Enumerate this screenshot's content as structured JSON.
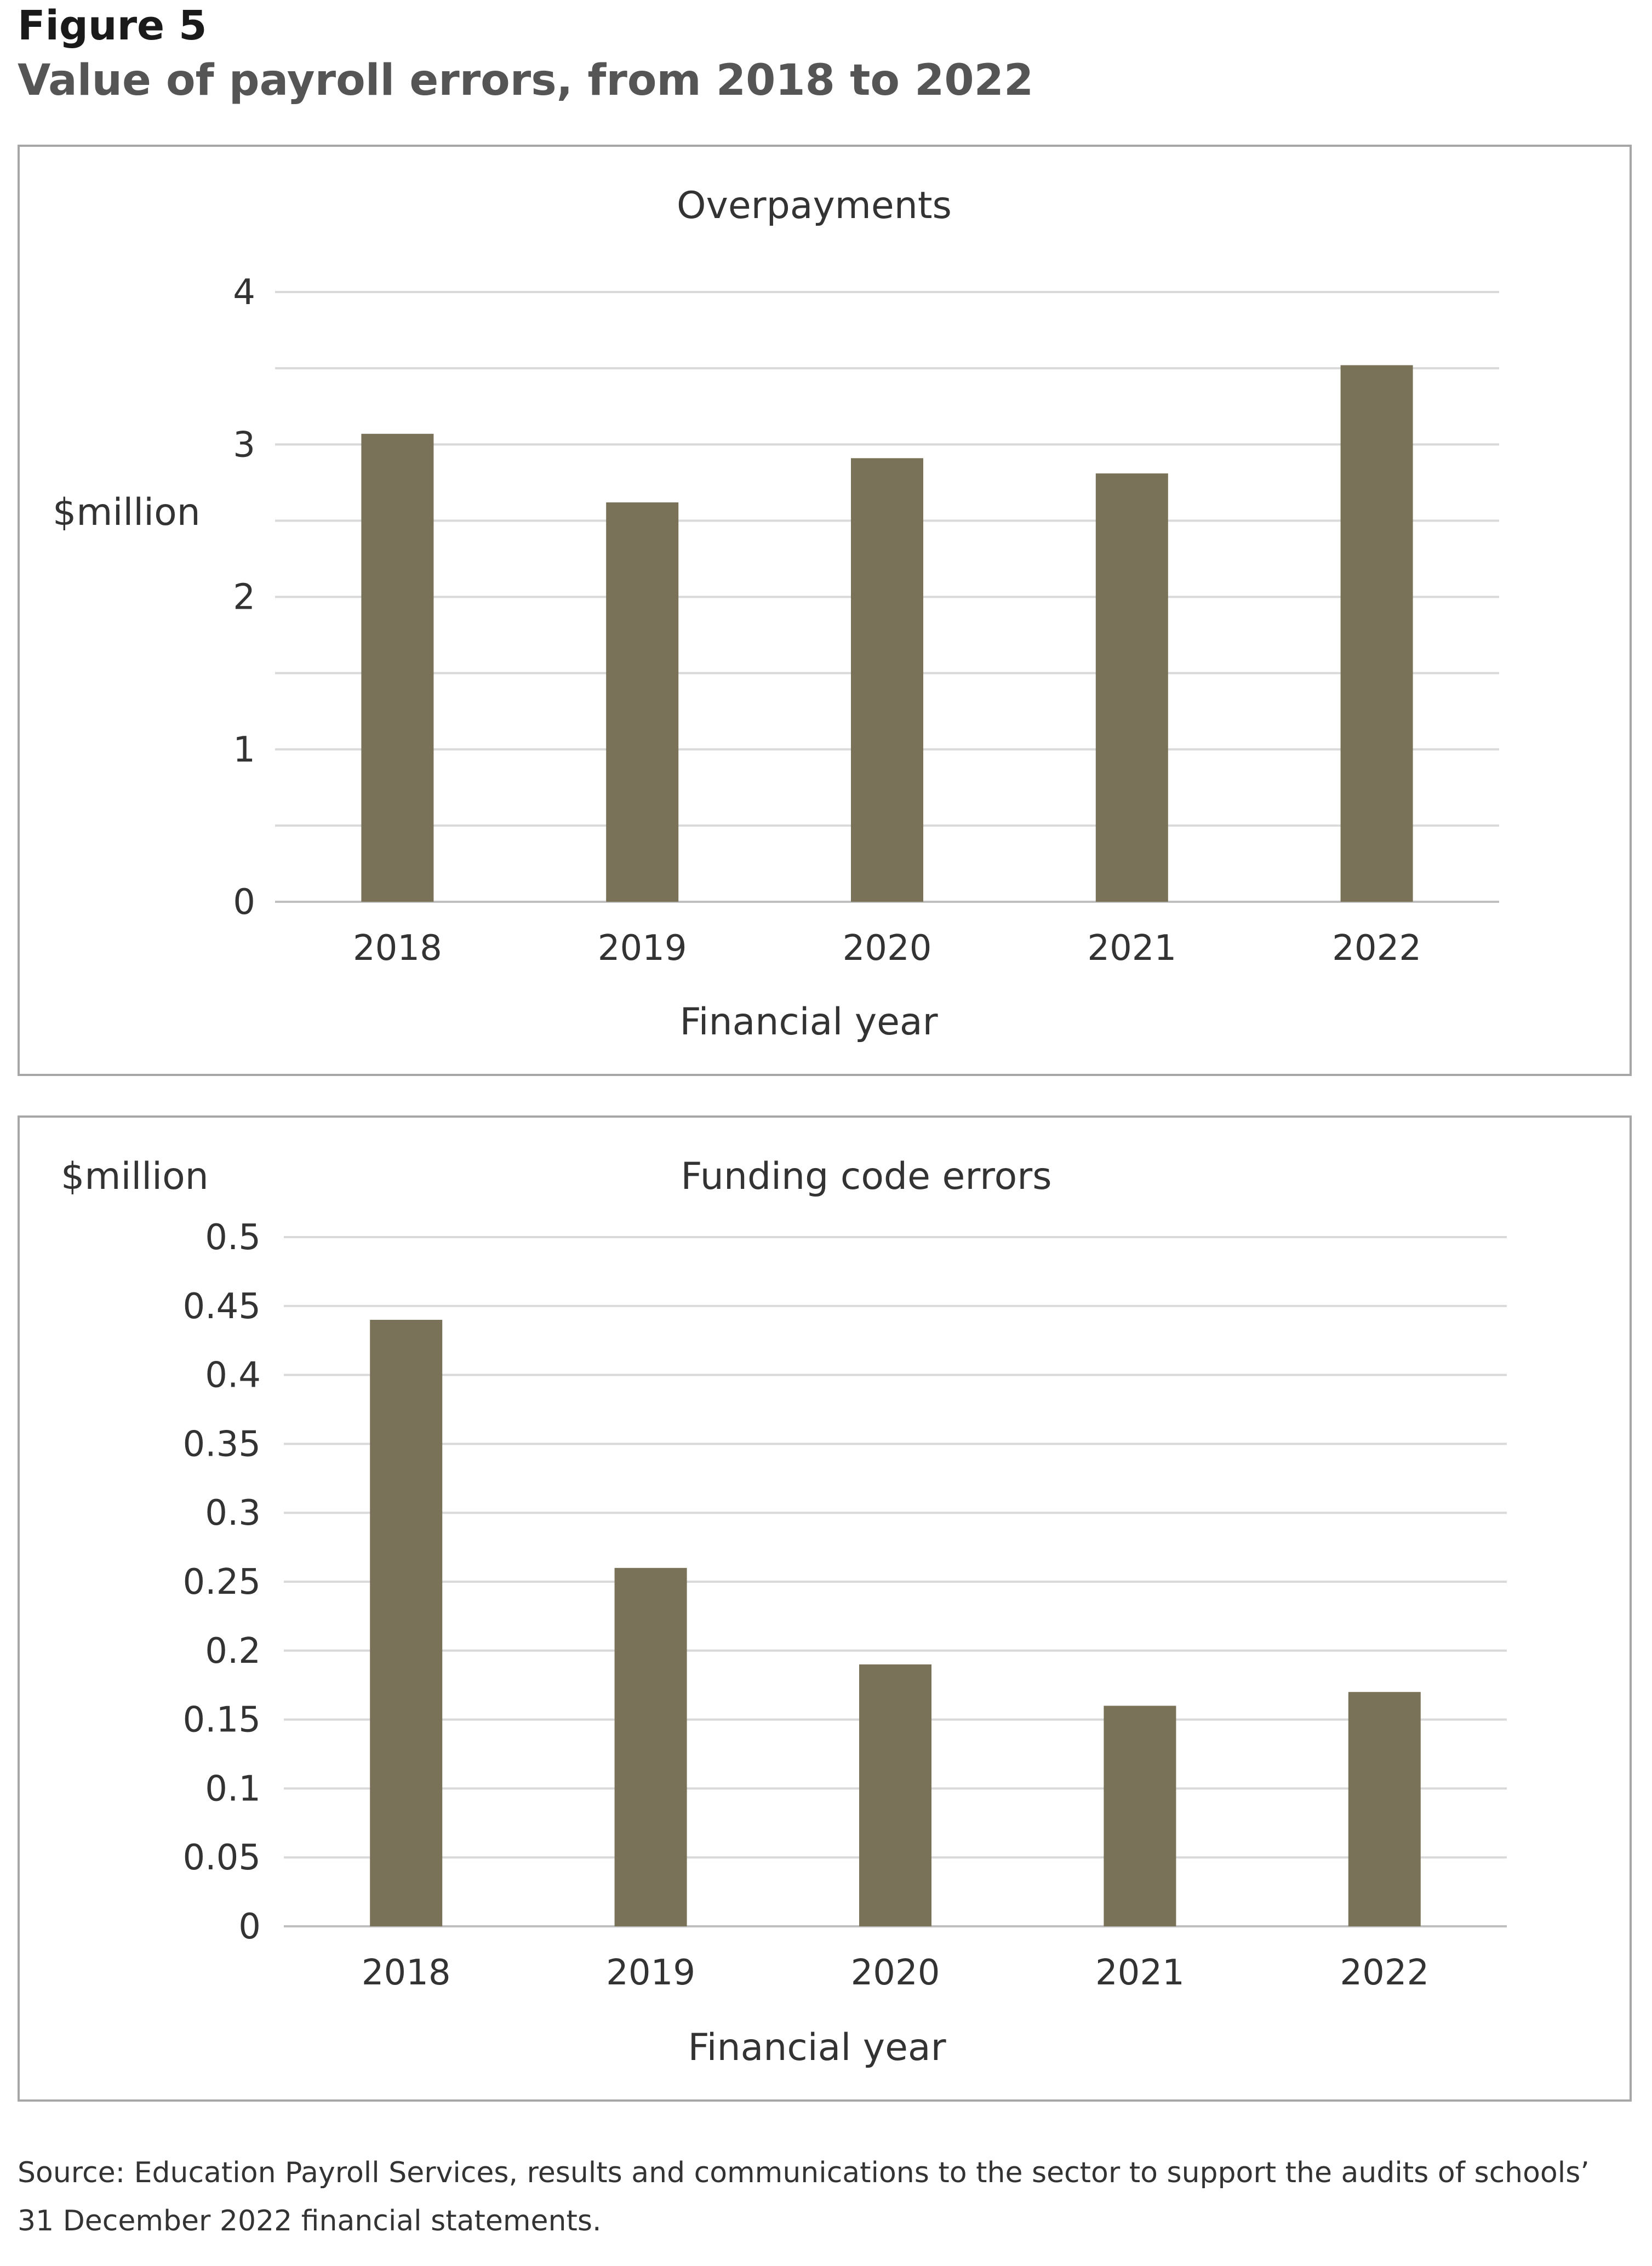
{
  "figure_label": "Figure 5",
  "figure_title": "Value of payroll errors, from 2018 to 2022",
  "source_line1": "Source: Education Payroll Services, results and communications to the sector to support the audits of schools’",
  "source_line2": "31 December 2022 financial statements.",
  "bar_color": "#7a7258",
  "chart_data": [
    {
      "type": "bar",
      "title": "Overpayments",
      "ylabel": "$million",
      "xlabel": "Financial year",
      "categories": [
        "2018",
        "2019",
        "2020",
        "2021",
        "2022"
      ],
      "values": [
        3.07,
        2.62,
        2.91,
        2.81,
        3.52
      ],
      "ylim": [
        0,
        4
      ],
      "yticks": [
        "0",
        "1",
        "2",
        "3",
        "4"
      ],
      "gridline_step": 0.5,
      "grid": true,
      "legend": "none"
    },
    {
      "type": "bar",
      "title": "Funding code errors",
      "ylabel": "$million",
      "xlabel": "Financial year",
      "categories": [
        "2018",
        "2019",
        "2020",
        "2021",
        "2022"
      ],
      "values": [
        0.44,
        0.26,
        0.19,
        0.16,
        0.17
      ],
      "ylim": [
        0,
        0.5
      ],
      "yticks": [
        "0",
        "0.05",
        "0.1",
        "0.15",
        "0.2",
        "0.25",
        "0.3",
        "0.35",
        "0.4",
        "0.45",
        "0.5"
      ],
      "gridline_step": 0.05,
      "grid": true,
      "legend": "none"
    }
  ]
}
